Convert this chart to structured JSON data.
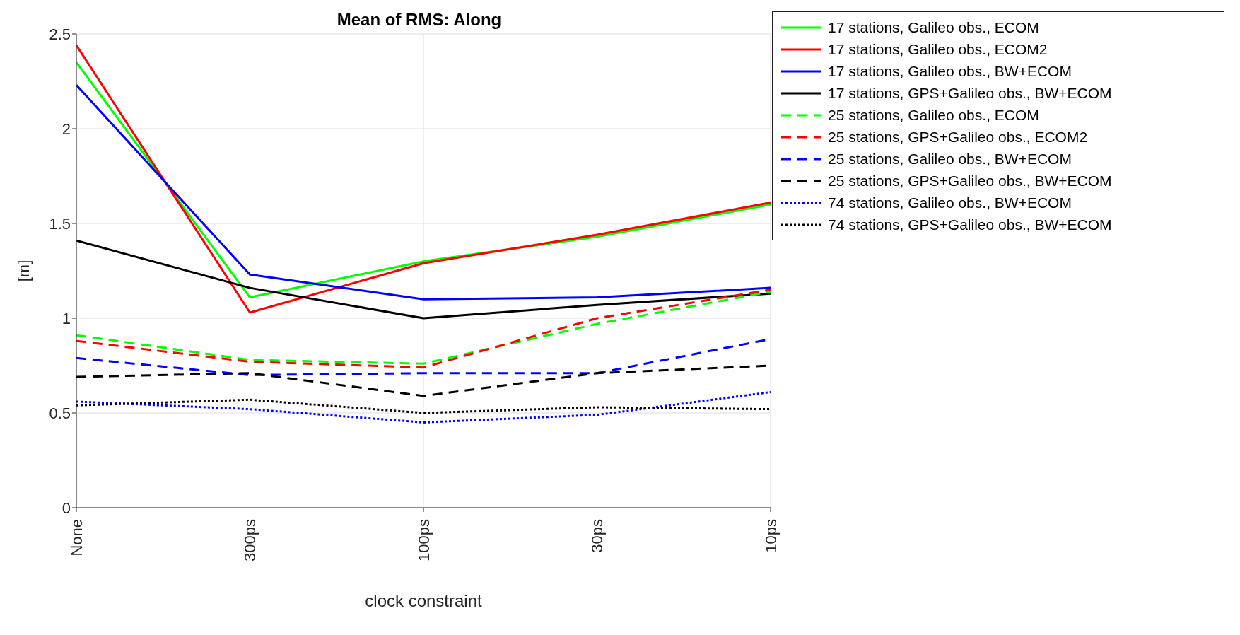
{
  "chart_data": {
    "type": "line",
    "title": "Mean of RMS: Along",
    "xlabel": "clock constraint",
    "ylabel": "[m]",
    "categories": [
      "None",
      "300ps",
      "100ps",
      "30ps",
      "10ps"
    ],
    "ylim": [
      0,
      2.5
    ],
    "yticks": [
      0,
      0.5,
      1,
      1.5,
      2,
      2.5
    ],
    "grid": true,
    "legend": "right",
    "marker": "none",
    "series": [
      {
        "name": "17 stations, Galileo obs., ECOM",
        "color": "#00ff00",
        "line_style": "solid",
        "values": [
          2.35,
          1.11,
          1.3,
          1.43,
          1.6
        ]
      },
      {
        "name": "17 stations, Galileo obs., ECOM2",
        "color": "#ff0000",
        "line_style": "solid",
        "values": [
          2.44,
          1.03,
          1.29,
          1.44,
          1.61
        ]
      },
      {
        "name": "17 stations, Galileo obs., BW+ECOM",
        "color": "#0000ff",
        "line_style": "solid",
        "values": [
          2.23,
          1.23,
          1.1,
          1.11,
          1.16
        ]
      },
      {
        "name": "17 stations, GPS+Galileo obs., BW+ECOM",
        "color": "#000000",
        "line_style": "solid",
        "values": [
          1.41,
          1.16,
          1.0,
          1.07,
          1.13
        ]
      },
      {
        "name": "25 stations, Galileo obs., ECOM",
        "color": "#00ff00",
        "line_style": "dashed",
        "values": [
          0.91,
          0.78,
          0.76,
          0.97,
          1.14
        ]
      },
      {
        "name": "25 stations, GPS+Galileo obs., ECOM2",
        "color": "#ff0000",
        "line_style": "dashed",
        "values": [
          0.88,
          0.77,
          0.74,
          1.0,
          1.15
        ]
      },
      {
        "name": "25 stations, Galileo obs., BW+ECOM",
        "color": "#0000ff",
        "line_style": "dashed",
        "values": [
          0.79,
          0.7,
          0.71,
          0.71,
          0.89
        ]
      },
      {
        "name": "25 stations, GPS+Galileo obs., BW+ECOM",
        "color": "#000000",
        "line_style": "dashed",
        "values": [
          0.69,
          0.71,
          0.59,
          0.71,
          0.75
        ]
      },
      {
        "name": "74 stations, Galileo obs., BW+ECOM",
        "color": "#0000ff",
        "line_style": "dotted",
        "values": [
          0.56,
          0.52,
          0.45,
          0.49,
          0.61
        ]
      },
      {
        "name": "74 stations, GPS+Galileo obs., BW+ECOM",
        "color": "#000000",
        "line_style": "dotted",
        "values": [
          0.54,
          0.57,
          0.5,
          0.53,
          0.52
        ]
      }
    ]
  }
}
